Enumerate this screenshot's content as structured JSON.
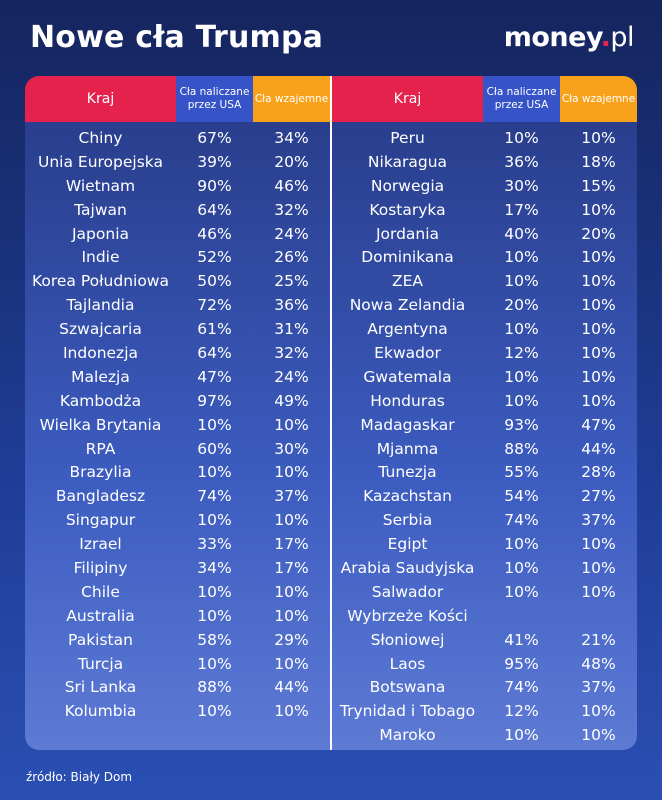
{
  "header": {
    "title": "Nowe cła Trumpa",
    "brand_main": "money",
    "brand_dot": ".",
    "brand_suffix": "pl"
  },
  "columns": {
    "country": "Kraj",
    "us_tariffs": "Cła naliczane przez USA",
    "reciprocal": "Cła wzajemne"
  },
  "colors": {
    "country_header": "#e4224c",
    "us_header": "#3654c8",
    "reciprocal_header": "#f8a21c"
  },
  "chart_data": {
    "type": "table",
    "title": "Nowe cła Trumpa",
    "columns": [
      "Kraj",
      "Cła naliczane przez USA",
      "Cła wzajemne"
    ],
    "left_table": [
      {
        "country": "Chiny",
        "us": "67%",
        "recip": "34%"
      },
      {
        "country": "Unia Europejska",
        "us": "39%",
        "recip": "20%"
      },
      {
        "country": "Wietnam",
        "us": "90%",
        "recip": "46%"
      },
      {
        "country": "Tajwan",
        "us": "64%",
        "recip": "32%"
      },
      {
        "country": "Japonia",
        "us": "46%",
        "recip": "24%"
      },
      {
        "country": "Indie",
        "us": "52%",
        "recip": "26%"
      },
      {
        "country": "Korea Południowa",
        "us": "50%",
        "recip": "25%"
      },
      {
        "country": "Tajlandia",
        "us": "72%",
        "recip": "36%"
      },
      {
        "country": "Szwajcaria",
        "us": "61%",
        "recip": "31%"
      },
      {
        "country": "Indonezja",
        "us": "64%",
        "recip": "32%"
      },
      {
        "country": "Malezja",
        "us": "47%",
        "recip": "24%"
      },
      {
        "country": "Kambodża",
        "us": "97%",
        "recip": "49%"
      },
      {
        "country": "Wielka Brytania",
        "us": "10%",
        "recip": "10%"
      },
      {
        "country": "RPA",
        "us": "60%",
        "recip": "30%"
      },
      {
        "country": "Brazylia",
        "us": "10%",
        "recip": "10%"
      },
      {
        "country": "Bangladesz",
        "us": "74%",
        "recip": "37%"
      },
      {
        "country": "Singapur",
        "us": "10%",
        "recip": "10%"
      },
      {
        "country": "Izrael",
        "us": "33%",
        "recip": "17%"
      },
      {
        "country": "Filipiny",
        "us": "34%",
        "recip": "17%"
      },
      {
        "country": "Chile",
        "us": "10%",
        "recip": "10%"
      },
      {
        "country": "Australia",
        "us": "10%",
        "recip": "10%"
      },
      {
        "country": "Pakistan",
        "us": "58%",
        "recip": "29%"
      },
      {
        "country": "Turcja",
        "us": "10%",
        "recip": "10%"
      },
      {
        "country": "Sri Lanka",
        "us": "88%",
        "recip": "44%"
      },
      {
        "country": "Kolumbia",
        "us": "10%",
        "recip": "10%"
      }
    ],
    "right_table": [
      {
        "country": "Peru",
        "us": "10%",
        "recip": "10%"
      },
      {
        "country": "Nikaragua",
        "us": "36%",
        "recip": "18%"
      },
      {
        "country": "Norwegia",
        "us": "30%",
        "recip": "15%"
      },
      {
        "country": "Kostaryka",
        "us": "17%",
        "recip": "10%"
      },
      {
        "country": "Jordania",
        "us": "40%",
        "recip": "20%"
      },
      {
        "country": "Dominikana",
        "us": "10%",
        "recip": "10%"
      },
      {
        "country": "ZEA",
        "us": "10%",
        "recip": "10%"
      },
      {
        "country": "Nowa Zelandia",
        "us": "20%",
        "recip": "10%"
      },
      {
        "country": "Argentyna",
        "us": "10%",
        "recip": "10%"
      },
      {
        "country": "Ekwador",
        "us": "12%",
        "recip": "10%"
      },
      {
        "country": "Gwatemala",
        "us": "10%",
        "recip": "10%"
      },
      {
        "country": "Honduras",
        "us": "10%",
        "recip": "10%"
      },
      {
        "country": "Madagaskar",
        "us": "93%",
        "recip": "47%"
      },
      {
        "country": "Mjanma",
        "us": "88%",
        "recip": "44%"
      },
      {
        "country": "Tunezja",
        "us": "55%",
        "recip": "28%"
      },
      {
        "country": "Kazachstan",
        "us": "54%",
        "recip": "27%"
      },
      {
        "country": "Serbia",
        "us": "74%",
        "recip": "37%"
      },
      {
        "country": "Egipt",
        "us": "10%",
        "recip": "10%"
      },
      {
        "country": "Arabia Saudyjska",
        "us": "10%",
        "recip": "10%"
      },
      {
        "country": "Salwador",
        "us": "10%",
        "recip": "10%"
      },
      {
        "country": "Wybrzeże Kości",
        "us": "",
        "recip": ""
      },
      {
        "country": "Słoniowej",
        "us": "41%",
        "recip": "21%"
      },
      {
        "country": "Laos",
        "us": "95%",
        "recip": "48%"
      },
      {
        "country": "Botswana",
        "us": "74%",
        "recip": "37%"
      },
      {
        "country": "Trynidad i Tobago",
        "us": "12%",
        "recip": "10%"
      },
      {
        "country": "Maroko",
        "us": "10%",
        "recip": "10%"
      }
    ]
  },
  "footer": {
    "source": "źródło: Biały Dom"
  }
}
